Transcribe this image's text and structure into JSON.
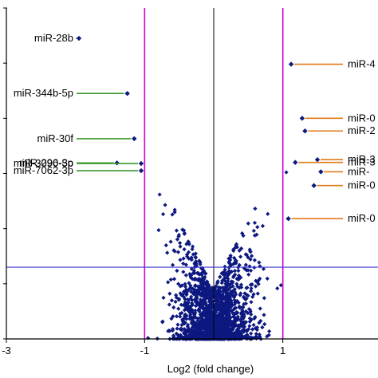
{
  "colors": {
    "point": "#0d1880",
    "threshold_fc": "#d400d4",
    "threshold_p": "#3a3ad0",
    "zero_line": "#000000",
    "axis": "#000000",
    "left_callout": "#3c9a2c",
    "right_callout": "#e07a1a"
  },
  "chart_data": {
    "type": "scatter",
    "title": "",
    "xlabel": "Log2 (fold change)",
    "ylabel": "",
    "xlim": [
      -3,
      3
    ],
    "ylim": [
      0,
      6
    ],
    "x_ticks": [
      -3,
      -1,
      1
    ],
    "x_tick_labels": [
      "-3",
      "-1",
      "1"
    ],
    "grid": false,
    "reference_lines": {
      "vertical": [
        -1,
        0,
        1
      ],
      "horizontal": [
        1.3
      ]
    },
    "labeled_points": [
      {
        "label": "miR-28b",
        "x": -1.95,
        "y": 5.45,
        "side": "left"
      },
      {
        "label": "miR-344b-5p",
        "x": -1.25,
        "y": 4.45,
        "side": "left"
      },
      {
        "label": "miR-30f",
        "x": -1.15,
        "y": 3.63,
        "side": "left"
      },
      {
        "label": "miR-3090-5p",
        "x": -1.05,
        "y": 3.18,
        "side": "left"
      },
      {
        "label": "miR-296-3p",
        "x": -1.4,
        "y": 3.19,
        "side": "left"
      },
      {
        "label": "miR-7062-3p",
        "x": -1.05,
        "y": 3.05,
        "side": "left"
      },
      {
        "label": "miR-4",
        "x": 1.12,
        "y": 4.98,
        "side": "right"
      },
      {
        "label": "miR-0",
        "x": 1.28,
        "y": 4.0,
        "side": "right"
      },
      {
        "label": "miR-2",
        "x": 1.32,
        "y": 3.77,
        "side": "right"
      },
      {
        "label": "miR-3",
        "x": 1.18,
        "y": 3.2,
        "side": "right"
      },
      {
        "label": "miR-3",
        "x": 1.5,
        "y": 3.25,
        "side": "right"
      },
      {
        "label": "miR-",
        "x": 1.55,
        "y": 3.03,
        "side": "right"
      },
      {
        "label": "miR-0",
        "x": 1.45,
        "y": 2.78,
        "side": "right"
      },
      {
        "label": "miR-0",
        "x": 1.08,
        "y": 2.18,
        "side": "right"
      }
    ],
    "background_points": {
      "approx_count": 1800,
      "x_spread_sd": 0.28,
      "x_range": [
        -0.95,
        1.05
      ],
      "y_range": [
        0,
        3.1
      ],
      "seed": 7
    }
  }
}
